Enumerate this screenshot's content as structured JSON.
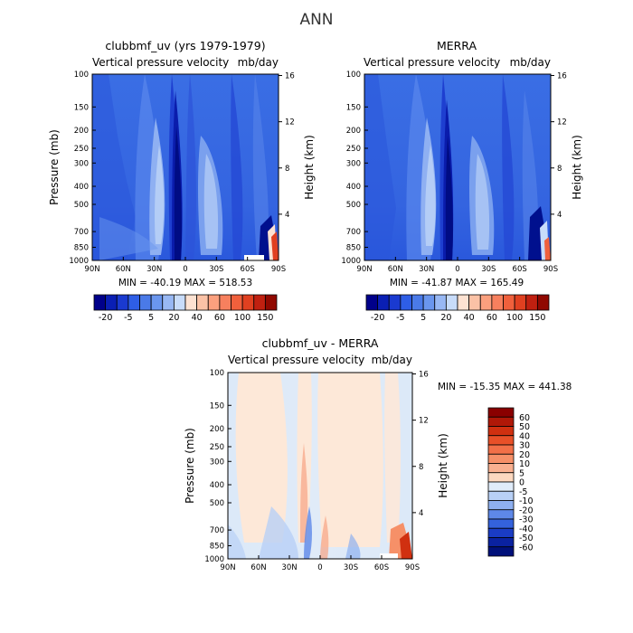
{
  "page_title": "ANN",
  "chart_data": [
    {
      "type": "heatmap",
      "title": "clubbmf_uv (yrs 1979-1979)",
      "subtitle_left": "Vertical pressure velocity",
      "subtitle_right": "mb/day",
      "xlabel": "",
      "ylabel": "Pressure (mb)",
      "ylabel_right": "Height (km)",
      "x_ticks": [
        "90N",
        "60N",
        "30N",
        "0",
        "30S",
        "60S",
        "90S"
      ],
      "y_ticks": [
        "100",
        "150",
        "200",
        "250",
        "300",
        "400",
        "500",
        "700",
        "850",
        "1000"
      ],
      "y_ticks_right": [
        "16",
        "12",
        "8",
        "4"
      ],
      "stats": "MIN = -40.19   MAX = 518.53",
      "colorbar_labels": [
        "-20",
        "-5",
        "5",
        "20",
        "40",
        "60",
        "100",
        "150"
      ],
      "colorbar_colors": [
        "#00008a",
        "#0a1fb4",
        "#1a3ad0",
        "#2e5ee6",
        "#4a7ae8",
        "#6a96ee",
        "#98b8f4",
        "#c8dcfa",
        "#fde2d2",
        "#fbc2a6",
        "#fba07e",
        "#f7805e",
        "#f0603c",
        "#e04020",
        "#c02010",
        "#900800"
      ]
    },
    {
      "type": "heatmap",
      "title": "MERRA",
      "subtitle_left": "Vertical pressure velocity",
      "subtitle_right": "mb/day",
      "xlabel": "",
      "ylabel": "Pressure (mb)",
      "ylabel_right": "Height (km)",
      "x_ticks": [
        "90N",
        "60N",
        "30N",
        "0",
        "30S",
        "60S",
        "90S"
      ],
      "y_ticks": [
        "100",
        "150",
        "200",
        "250",
        "300",
        "400",
        "500",
        "700",
        "850",
        "1000"
      ],
      "y_ticks_right": [
        "16",
        "12",
        "8",
        "4"
      ],
      "stats": "MIN = -41.87   MAX = 165.49",
      "colorbar_labels": [
        "-20",
        "-5",
        "5",
        "20",
        "40",
        "60",
        "100",
        "150"
      ],
      "colorbar_colors": [
        "#00008a",
        "#0a1fb4",
        "#1a3ad0",
        "#2e5ee6",
        "#4a7ae8",
        "#6a96ee",
        "#98b8f4",
        "#c8dcfa",
        "#fde2d2",
        "#fbc2a6",
        "#fba07e",
        "#f7805e",
        "#f0603c",
        "#e04020",
        "#c02010",
        "#900800"
      ]
    },
    {
      "type": "heatmap",
      "title": "clubbmf_uv - MERRA",
      "subtitle_left": "Vertical pressure velocity",
      "subtitle_right": "mb/day",
      "xlabel": "",
      "ylabel": "Pressure (mb)",
      "ylabel_right": "Height (km)",
      "x_ticks": [
        "90N",
        "60N",
        "30N",
        "0",
        "30S",
        "60S",
        "90S"
      ],
      "y_ticks": [
        "100",
        "150",
        "200",
        "250",
        "300",
        "400",
        "500",
        "700",
        "850",
        "1000"
      ],
      "y_ticks_right": [
        "16",
        "12",
        "8",
        "4"
      ],
      "stats": "MIN = -15.35   MAX = 441.38",
      "colorbar_labels": [
        "60",
        "50",
        "40",
        "30",
        "20",
        "10",
        "5",
        "0",
        "-5",
        "-10",
        "-20",
        "-30",
        "-40",
        "-50",
        "-60"
      ],
      "colorbar_colors": [
        "#8a0000",
        "#b01808",
        "#d03010",
        "#e85028",
        "#f27048",
        "#f69068",
        "#f9b090",
        "#fcd8c0",
        "#e0ecfa",
        "#b8d0f6",
        "#8eb0f0",
        "#5e88e8",
        "#3462dc",
        "#1a3cc4",
        "#0a22a0",
        "#00107a"
      ]
    }
  ]
}
